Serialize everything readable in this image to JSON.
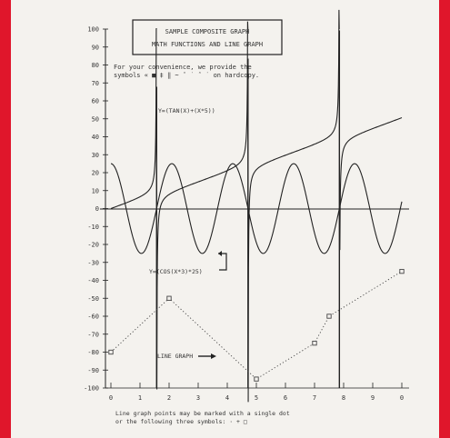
{
  "chart_data": {
    "type": "line",
    "title_lines": [
      "SAMPLE COMPOSITE GRAPH",
      "MATH FUNCTIONS AND LINE GRAPH"
    ],
    "note_lines": [
      "For your convenience, we provide the",
      "symbols « ■ ‡ ‖ ~ ˆ ˙ ˆ ˙ on hardcopy."
    ],
    "footer_lines": [
      "Line graph points may be marked with a single dot",
      "or the following three symbols: · + □"
    ],
    "xlim": [
      0,
      10
    ],
    "ylim": [
      -100,
      100
    ],
    "y_ticks": [
      100,
      90,
      80,
      70,
      60,
      50,
      40,
      30,
      20,
      10,
      0,
      -10,
      -20,
      -30,
      -40,
      -50,
      -60,
      -70,
      -80,
      -90,
      -100
    ],
    "x_ticks": [
      "0",
      "1",
      "2",
      "3",
      "4",
      "5",
      "6",
      "7",
      "8",
      "9",
      "0"
    ],
    "grid": false,
    "series": [
      {
        "name": "Y=(TAN(X)+(X*5))",
        "expression": "tan(x) + 5x",
        "color": "#222222"
      },
      {
        "name": "Y=(COS(X*3)*25)",
        "expression": "25*cos(3x)",
        "color": "#222222"
      },
      {
        "name": "LINE GRAPH",
        "style": "dotted",
        "marker": "square",
        "color": "#444444",
        "x": [
          0,
          2,
          5,
          7,
          7.5,
          10
        ],
        "y": [
          -80,
          -50,
          -95,
          -75,
          -60,
          -35
        ]
      }
    ]
  }
}
